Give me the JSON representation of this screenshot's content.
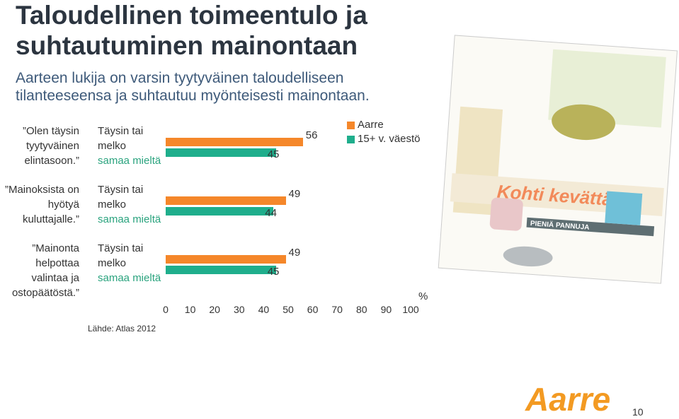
{
  "header": {
    "title_lines": [
      "Taloudellinen toimeentulo ja",
      "suhtautuminen mainontaan"
    ],
    "subtitle_lines": [
      "Aarteen lukija on varsin tyytyväinen taloudelliseen",
      "tilanteeseensa ja suhtautuu myönteisesti mainontaan."
    ]
  },
  "chart_data": {
    "type": "bar",
    "orientation": "horizontal",
    "categories": [
      "”Olen täysin tyytyväinen elintasoon.”",
      "”Mainoksista on hyötyä kuluttajalle.”",
      "”Mainonta helpottaa valintaa ja ostopäätöstä.”"
    ],
    "response_label": {
      "main": "Täysin tai melko",
      "accent": "samaa mieltä"
    },
    "series": [
      {
        "name": "Aarre",
        "color": "#f5872a",
        "values": [
          56,
          49,
          49
        ]
      },
      {
        "name": "15+ v. väestö",
        "color": "#1fae8c",
        "values": [
          45,
          44,
          45
        ]
      }
    ],
    "xlim": [
      0,
      100
    ],
    "xticks": [
      0,
      10,
      20,
      30,
      40,
      50,
      60,
      70,
      80,
      90,
      100
    ],
    "x_unit": "%",
    "legend": "top-right"
  },
  "source": "Lähde: Atlas 2012",
  "magazine": {
    "headlines": [
      "Kohti kevättä",
      "PIENIÄ PANNUJA"
    ]
  },
  "logo": "Aarre",
  "page_number": "10"
}
